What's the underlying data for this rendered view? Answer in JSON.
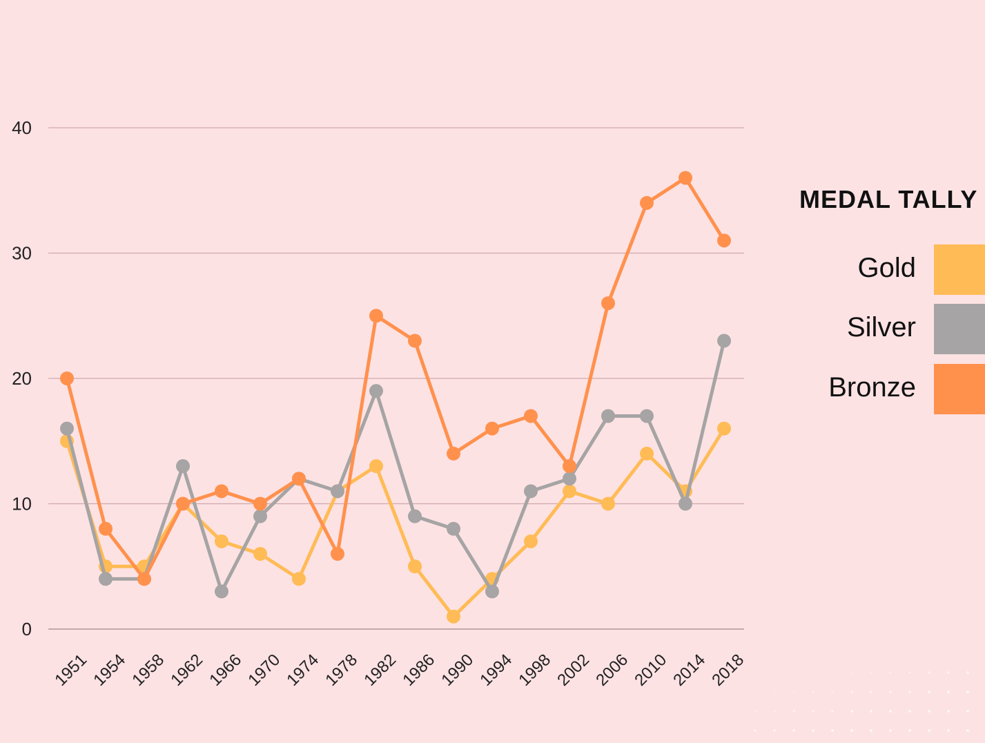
{
  "chart_data": {
    "type": "line",
    "title": "MEDAL TALLY",
    "xlabel": "",
    "ylabel": "",
    "ylim": [
      0,
      40
    ],
    "yticks": [
      "0",
      "10",
      "20",
      "30",
      "40"
    ],
    "grid": true,
    "legend_position": "right",
    "categories": [
      "1951",
      "1954",
      "1958",
      "1962",
      "1966",
      "1970",
      "1974",
      "1978",
      "1982",
      "1986",
      "1990",
      "1994",
      "1998",
      "2002",
      "2006",
      "2010",
      "2014",
      "2018"
    ],
    "series": [
      {
        "name": "Gold",
        "color": "#ffbb55",
        "values": [
          15,
          5,
          5,
          10,
          7,
          6,
          4,
          11,
          13,
          5,
          1,
          4,
          7,
          11,
          10,
          14,
          11,
          16
        ]
      },
      {
        "name": "Silver",
        "color": "#a6a4a4",
        "values": [
          16,
          4,
          4,
          13,
          3,
          9,
          12,
          11,
          19,
          9,
          8,
          3,
          11,
          12,
          17,
          17,
          10,
          23
        ]
      },
      {
        "name": "Bronze",
        "color": "#ff914d",
        "values": [
          20,
          8,
          4,
          10,
          11,
          10,
          12,
          6,
          25,
          23,
          14,
          16,
          17,
          13,
          26,
          34,
          36,
          31
        ]
      }
    ]
  }
}
